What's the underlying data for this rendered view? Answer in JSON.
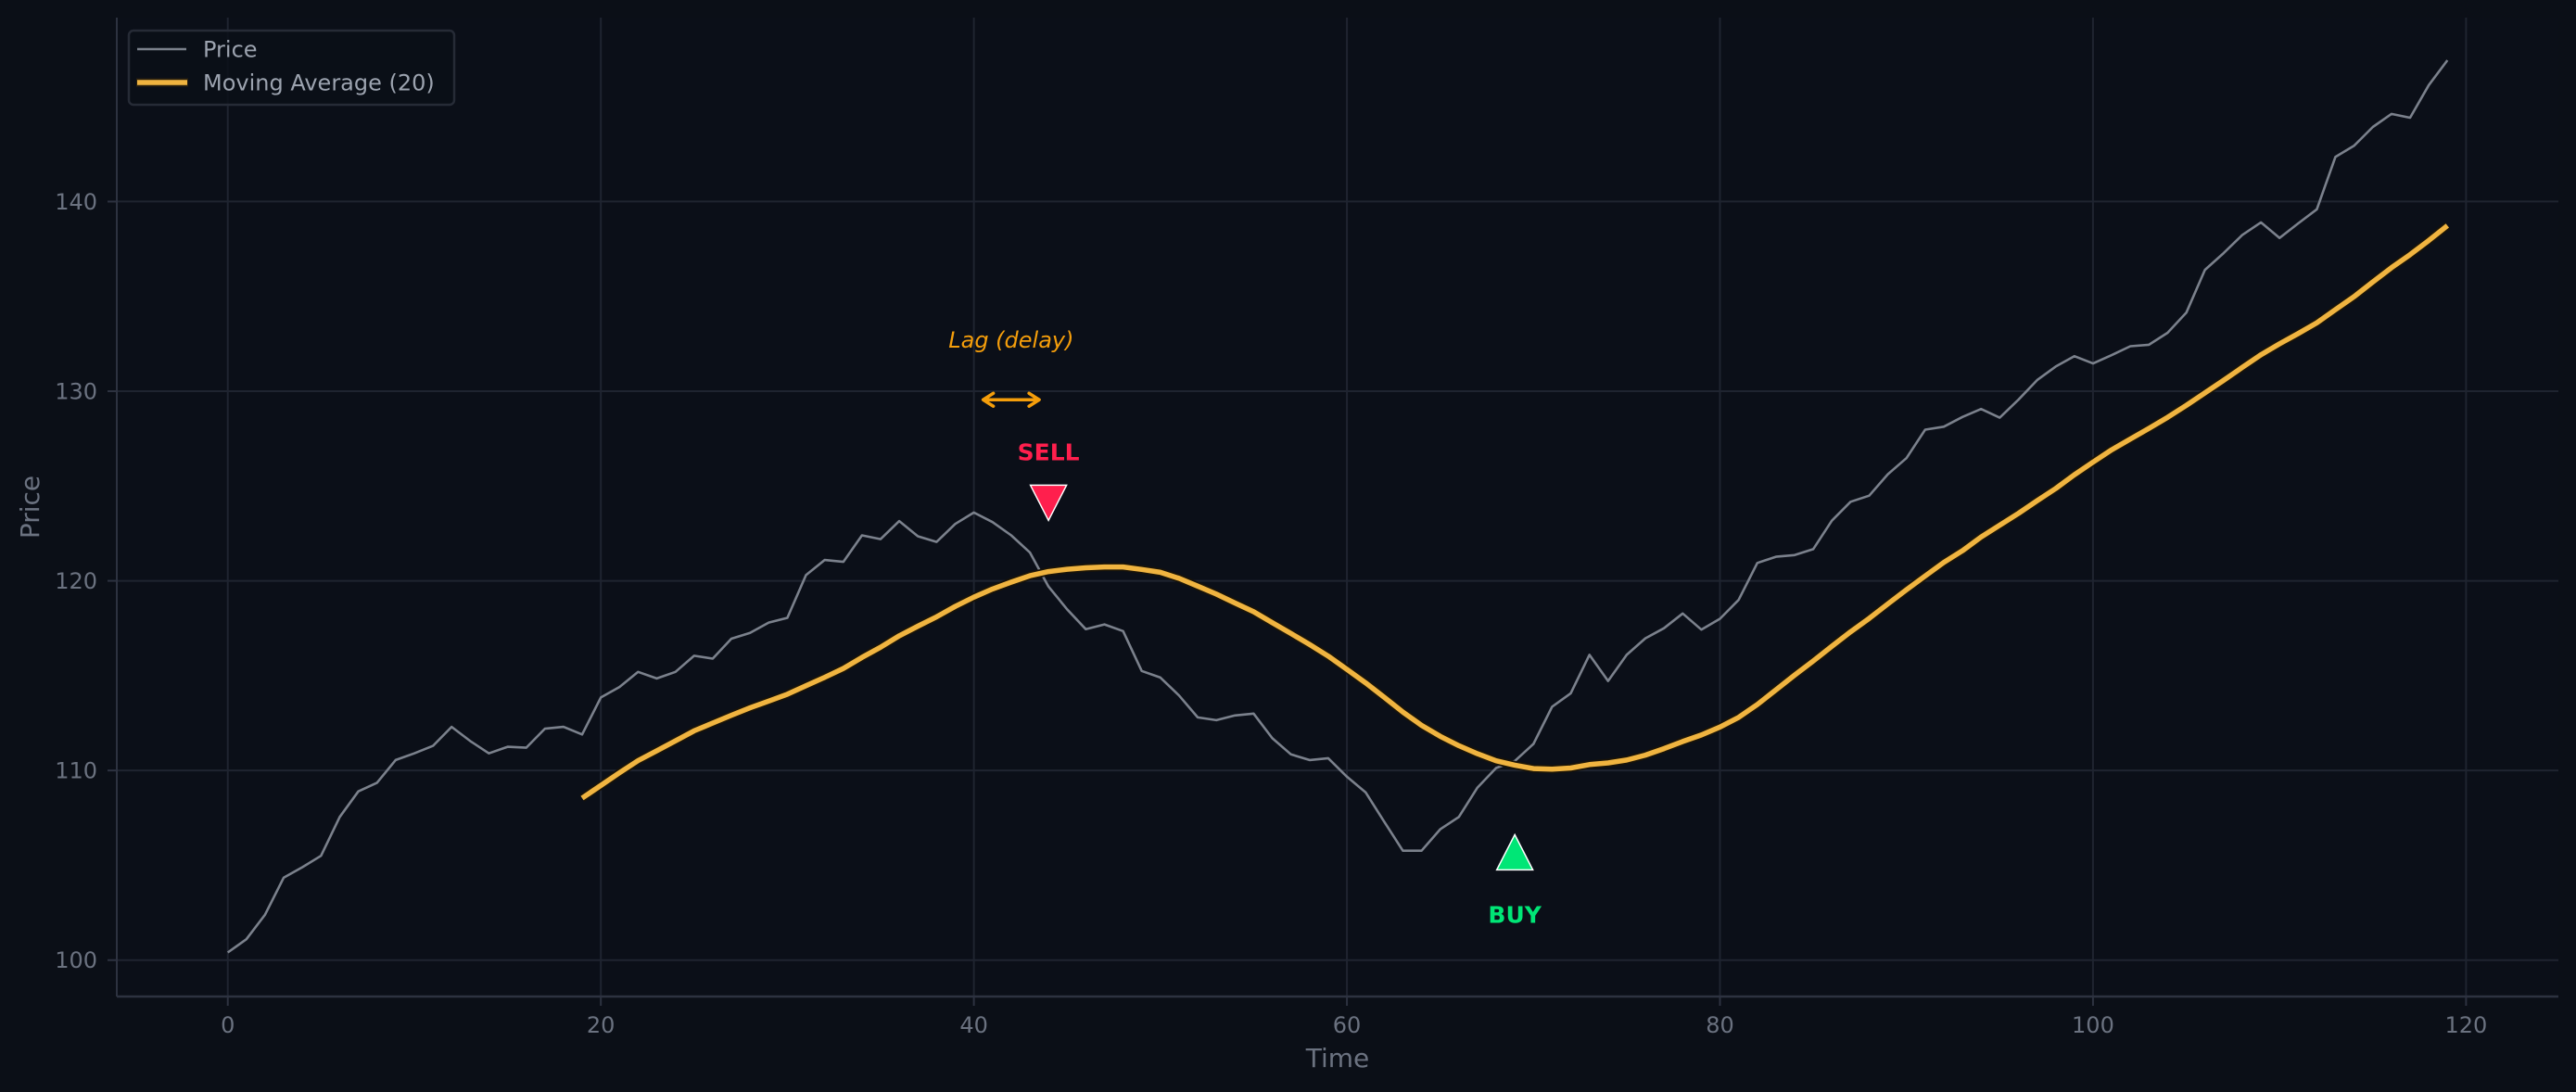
{
  "chart_data": {
    "type": "line",
    "title": "",
    "xlabel": "Time",
    "ylabel": "Price",
    "xlim": [
      -5.95,
      124.95
    ],
    "ylim": [
      98.08,
      149.7
    ],
    "xticks": [
      0,
      20,
      40,
      60,
      80,
      100,
      120
    ],
    "yticks": [
      100,
      110,
      120,
      130,
      140
    ],
    "grid": true,
    "legend_position": "upper left",
    "legend": [
      "Price",
      "Moving Average (20)"
    ],
    "x": [
      0,
      1,
      2,
      3,
      4,
      5,
      6,
      7,
      8,
      9,
      10,
      11,
      12,
      13,
      14,
      15,
      16,
      17,
      18,
      19,
      20,
      21,
      22,
      23,
      24,
      25,
      26,
      27,
      28,
      29,
      30,
      31,
      32,
      33,
      34,
      35,
      36,
      37,
      38,
      39,
      40,
      41,
      42,
      43,
      44,
      45,
      46,
      47,
      48,
      49,
      50,
      51,
      52,
      53,
      54,
      55,
      56,
      57,
      58,
      59,
      60,
      61,
      62,
      63,
      64,
      65,
      66,
      67,
      68,
      69,
      70,
      71,
      72,
      73,
      74,
      75,
      76,
      77,
      78,
      79,
      80,
      81,
      82,
      83,
      84,
      85,
      86,
      87,
      88,
      89,
      90,
      91,
      92,
      93,
      94,
      95,
      96,
      97,
      98,
      99,
      100,
      101,
      102,
      103,
      104,
      105,
      106,
      107,
      108,
      109,
      110,
      111,
      112,
      113,
      114,
      115,
      116,
      117,
      118,
      119
    ],
    "series": [
      {
        "name": "Price",
        "color": "#7b818c",
        "line_width": 2,
        "start_index": 0,
        "values": [
          100.4,
          101.1,
          102.4,
          104.35,
          104.9,
          105.5,
          107.55,
          108.9,
          109.35,
          110.55,
          110.9,
          111.3,
          112.3,
          111.55,
          110.9,
          111.25,
          111.2,
          112.2,
          112.3,
          111.9,
          113.85,
          114.4,
          115.2,
          114.85,
          115.2,
          116.05,
          115.9,
          116.95,
          117.25,
          117.8,
          118.05,
          120.3,
          121.1,
          121.0,
          122.4,
          122.2,
          123.15,
          122.35,
          122.05,
          123.0,
          123.6,
          123.1,
          122.4,
          121.5,
          119.7,
          118.5,
          117.45,
          117.7,
          117.35,
          115.25,
          114.9,
          113.95,
          112.8,
          112.65,
          112.9,
          113.0,
          111.7,
          110.85,
          110.55,
          110.65,
          109.67,
          108.85,
          107.3,
          105.77,
          105.77,
          106.9,
          107.55,
          109.1,
          110.13,
          110.5,
          111.4,
          113.36,
          114.07,
          116.1,
          114.72,
          116.1,
          116.97,
          117.5,
          118.28,
          117.43,
          118.0,
          118.99,
          120.94,
          121.27,
          121.36,
          121.67,
          123.17,
          124.17,
          124.49,
          125.62,
          126.47,
          127.97,
          128.13,
          128.64,
          129.06,
          128.6,
          129.55,
          130.58,
          131.3,
          131.85,
          131.46,
          131.9,
          132.37,
          132.45,
          133.08,
          134.14,
          136.4,
          137.28,
          138.23,
          138.9,
          138.08,
          138.85,
          139.59,
          142.36,
          142.95,
          143.93,
          144.62,
          144.42,
          146.14,
          147.45
        ]
      },
      {
        "name": "Moving Average (20)",
        "color": "#f0b440",
        "line_width": 5,
        "start_index": 19,
        "values": [
          108.54,
          109.21,
          109.88,
          110.52,
          111.04,
          111.56,
          112.09,
          112.5,
          112.91,
          113.3,
          113.66,
          114.02,
          114.47,
          114.91,
          115.38,
          115.96,
          116.5,
          117.1,
          117.61,
          118.1,
          118.65,
          119.14,
          119.57,
          119.93,
          120.27,
          120.49,
          120.61,
          120.69,
          120.73,
          120.73,
          120.6,
          120.45,
          120.13,
          119.72,
          119.3,
          118.83,
          118.37,
          117.79,
          117.22,
          116.64,
          116.03,
          115.33,
          114.62,
          113.86,
          113.08,
          112.38,
          111.8,
          111.31,
          110.88,
          110.51,
          110.28,
          110.1,
          110.07,
          110.13,
          110.31,
          110.4,
          110.55,
          110.81,
          111.15,
          111.53,
          111.87,
          112.29,
          112.8,
          113.48,
          114.25,
          115.03,
          115.77,
          116.55,
          117.31,
          118.02,
          118.78,
          119.53,
          120.26,
          120.97,
          121.59,
          122.31,
          122.93,
          123.56,
          124.22,
          124.87,
          125.59,
          126.26,
          126.91,
          127.48,
          128.04,
          128.62,
          129.25,
          129.91,
          130.57,
          131.25,
          131.92,
          132.5,
          133.04,
          133.61,
          134.3,
          134.99,
          135.76,
          136.51,
          137.2,
          137.95,
          138.73
        ]
      }
    ],
    "annotations": [
      {
        "type": "text",
        "text": "Lag (delay)",
        "x": 42,
        "y": 132.7,
        "color": "#f59e0b",
        "style": "italic"
      },
      {
        "type": "double_arrow",
        "x_from": 40,
        "x_to": 44,
        "y": 129.55,
        "color": "#f59e0b"
      },
      {
        "type": "marker",
        "shape": "triangle-down",
        "x": 44,
        "y": 124.3,
        "color": "#ff1f4d",
        "label": "SELL",
        "label_y": 126.8
      },
      {
        "type": "marker",
        "shape": "triangle-up",
        "x": 69,
        "y": 105.5,
        "color": "#00e676",
        "label": "BUY",
        "label_y": 102.4
      }
    ]
  },
  "colors": {
    "background": "#0b0f17",
    "grid": "#1f2430",
    "spine": "#2d3240",
    "tick_label": "#6b7280",
    "legend_text": "#9ca3af",
    "legend_border": "#262b36"
  },
  "legend": {
    "items": [
      {
        "label": "Price"
      },
      {
        "label": "Moving Average (20)"
      }
    ]
  },
  "axes": {
    "xlabel": "Time",
    "ylabel": "Price",
    "xtick_labels": [
      "0",
      "20",
      "40",
      "60",
      "80",
      "100",
      "120"
    ],
    "ytick_labels": [
      "100",
      "110",
      "120",
      "130",
      "140"
    ]
  },
  "annotations_text": {
    "lag": "Lag (delay)",
    "sell": "SELL",
    "buy": "BUY"
  }
}
